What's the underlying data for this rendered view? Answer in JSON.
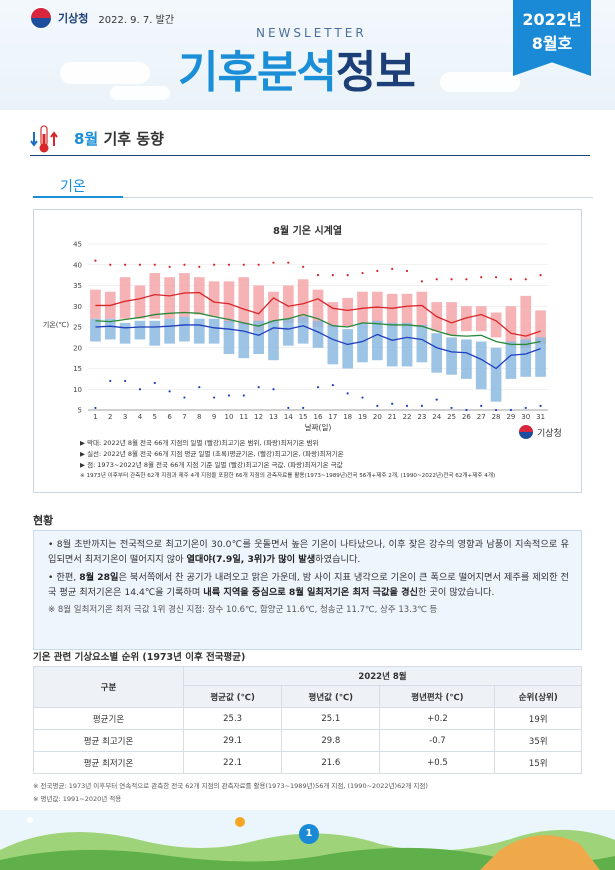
{
  "header": {
    "agency": "기상청",
    "pub_date": "2022. 9. 7. 발간",
    "newsletter": "NEWSLETTER",
    "title_part1": "기후분석",
    "title_part2": "정보",
    "issue_year": "2022년",
    "issue_month": "8월호"
  },
  "section": {
    "title_highlight": "8월",
    "title_rest": " 기후 동향",
    "tab": "기온"
  },
  "chart_data": {
    "type": "line",
    "title": "8월 기온 시계열",
    "xlabel": "날짜(일)",
    "ylabel": "기온(℃)",
    "ylim": [
      5,
      45
    ],
    "yticks": [
      5,
      10,
      15,
      20,
      25,
      30,
      35,
      40,
      45
    ],
    "x": [
      1,
      2,
      3,
      4,
      5,
      6,
      7,
      8,
      9,
      10,
      11,
      12,
      13,
      14,
      15,
      16,
      17,
      18,
      19,
      20,
      21,
      22,
      23,
      24,
      25,
      26,
      27,
      28,
      29,
      30,
      31
    ],
    "series": [
      {
        "name": "2022년 8월 최고기온",
        "color": "#d9262b",
        "values": [
          30.2,
          30.2,
          31.2,
          31.8,
          32.8,
          32.5,
          33.2,
          33.3,
          31.0,
          30.6,
          29.3,
          28.2,
          32.0,
          30.0,
          30.6,
          31.8,
          29.5,
          29.0,
          29.5,
          29.8,
          29.5,
          30.0,
          30.2,
          27.5,
          26.0,
          27.2,
          28.0,
          26.5,
          23.5,
          22.8,
          24.0
        ]
      },
      {
        "name": "2022년 8월 평균기온",
        "color": "#2a8a3b",
        "values": [
          26.5,
          26.3,
          26.8,
          27.3,
          28.0,
          28.3,
          28.5,
          28.3,
          27.5,
          26.8,
          26.0,
          25.2,
          26.5,
          27.0,
          28.0,
          27.0,
          25.3,
          25.0,
          26.0,
          25.8,
          25.5,
          25.5,
          25.2,
          24.0,
          23.0,
          22.8,
          23.0,
          21.5,
          20.8,
          20.8,
          21.5
        ]
      },
      {
        "name": "2022년 8월 최저기온",
        "color": "#1f3fbf",
        "values": [
          25.0,
          25.2,
          24.8,
          25.0,
          25.0,
          25.2,
          25.5,
          25.5,
          24.8,
          24.5,
          24.0,
          23.0,
          24.8,
          24.5,
          25.3,
          23.8,
          22.0,
          20.8,
          21.5,
          23.2,
          21.8,
          22.5,
          22.0,
          20.0,
          19.0,
          18.8,
          17.2,
          15.0,
          18.2,
          18.5,
          19.8
        ]
      }
    ],
    "max_range": {
      "name": "최고기온 범위",
      "values": [
        [
          27,
          34
        ],
        [
          27,
          33.5
        ],
        [
          27,
          37
        ],
        [
          27,
          35
        ],
        [
          27,
          38
        ],
        [
          27,
          37
        ],
        [
          27.5,
          38
        ],
        [
          28,
          37
        ],
        [
          27.5,
          36
        ],
        [
          26,
          36
        ],
        [
          25.5,
          37
        ],
        [
          24,
          35
        ],
        [
          26,
          33.5
        ],
        [
          26,
          35
        ],
        [
          26,
          36.5
        ],
        [
          25,
          34
        ],
        [
          25,
          31
        ],
        [
          25,
          32
        ],
        [
          26,
          33.5
        ],
        [
          26,
          33.5
        ],
        [
          25.5,
          33
        ],
        [
          25.5,
          33
        ],
        [
          25,
          33.5
        ],
        [
          24,
          31
        ],
        [
          23,
          31
        ],
        [
          24,
          30
        ],
        [
          24,
          30
        ],
        [
          22.5,
          28.5
        ],
        [
          21,
          30
        ],
        [
          20,
          32.5
        ],
        [
          21,
          29
        ]
      ]
    },
    "min_range": {
      "name": "최저기온 범위",
      "values": [
        [
          21.5,
          27
        ],
        [
          22,
          27
        ],
        [
          21,
          26
        ],
        [
          22,
          26.5
        ],
        [
          20.5,
          26.5
        ],
        [
          21,
          27
        ],
        [
          21.5,
          27.5
        ],
        [
          21,
          27
        ],
        [
          21,
          27
        ],
        [
          18.5,
          26.5
        ],
        [
          17.5,
          26
        ],
        [
          18.5,
          26.5
        ],
        [
          17,
          26.5
        ],
        [
          20.5,
          27
        ],
        [
          21,
          27.5
        ],
        [
          20,
          26.5
        ],
        [
          16,
          25.5
        ],
        [
          15,
          24.5
        ],
        [
          16.5,
          26
        ],
        [
          17,
          26.5
        ],
        [
          15.5,
          26
        ],
        [
          15.5,
          26
        ],
        [
          16.5,
          25.5
        ],
        [
          14,
          23.5
        ],
        [
          13.5,
          22.5
        ],
        [
          12.5,
          22
        ],
        [
          10,
          21.5
        ],
        [
          7,
          20
        ],
        [
          12.5,
          21.5
        ],
        [
          13,
          22
        ],
        [
          13,
          22.5
        ]
      ]
    },
    "record_high": [
      41,
      40,
      40,
      40,
      40,
      39.5,
      40,
      39.5,
      40,
      40,
      40,
      40,
      40.5,
      40.5,
      39.5,
      37.5,
      37.5,
      37.5,
      38,
      38.5,
      39,
      38.5,
      36,
      36.5,
      36.5,
      36.5,
      37,
      37,
      36.5,
      36.5,
      37.5
    ],
    "record_low": [
      5.5,
      12,
      12,
      10,
      11.5,
      9.5,
      8,
      10.5,
      8,
      8.5,
      8.5,
      10.5,
      10,
      5.5,
      5.5,
      10.5,
      11,
      9,
      8,
      6,
      6.5,
      6,
      6,
      7.5,
      5.5,
      5,
      6,
      5,
      5,
      5.5,
      6
    ]
  },
  "legend": {
    "line1": "▶ 막대: 2022년 8월 전국 66개 지점의 일별 (빨강)최고기온 범위, (파랑)최저기온 범위",
    "line2": "▶ 실선: 2022년 8월 전국 66개 지점 평균 일별 (초록)평균기온, (빨강)최고기온, (파랑)최저기온",
    "line3": "▶ 점: 1973~2022년 8월 전국 66개 지점 기준 일별 (빨강)최고기온 극값, (파랑)최저기온 극값",
    "note": "※ 1973년 이후부터 관측한 62개 지점과 제주 4개 지점을 포함한 66개 지점의 관측자료를 활용(1973~1989년)전국 56개+제주 2개, (1990~2022년)전국 62개+제주 4개)",
    "agency": "기상청"
  },
  "status": {
    "title": "현황",
    "p1_a": "8월 초반까지는 전국적으로 최고기온이 30.0℃를 웃돌면서 높은 기온이 나타났으나, 이후 잦은 강수의 영향과 남풍이 지속적으로 유입되면서 최저기온이 떨어지지 않아 ",
    "p1_b": "열대야(7.9일, 3위)가 많이 발생",
    "p1_c": "하였습니다.",
    "p2_a": "한편, ",
    "p2_b": "8월 28일",
    "p2_c": "은 북서쪽에서 찬 공기가 내려오고 맑은 가운데, 밤 사이 지표 냉각으로 기온이 큰 폭으로 떨어지면서 제주를 제외한 전국 평균 최저기온은 14.4℃을 기록하며 ",
    "p2_d": "내륙 지역을 중심으로 8월 일최저기온 최저 극값을 경신",
    "p2_e": "한 곳이 많았습니다.",
    "note": "※ 8월 일최저기온 최저 극값 1위 경신 지점: 장수 10.6℃, 함양군 11.6℃, 청송군 11.7℃, 상주 13.3℃ 등"
  },
  "table": {
    "title": "기온 관련 기상요소별 순위 (1973년 이후 전국평균)",
    "header_col": "구분",
    "group_header": "2022년 8월",
    "columns": [
      "평균값 (℃)",
      "평년값 (℃)",
      "평년편차 (℃)",
      "순위(상위)"
    ],
    "rows": [
      {
        "label": "평균기온",
        "cells": [
          "25.3",
          "25.1",
          "+0.2",
          "19위"
        ]
      },
      {
        "label": "평균 최고기온",
        "cells": [
          "29.1",
          "29.8",
          "-0.7",
          "35위"
        ]
      },
      {
        "label": "평균 최저기온",
        "cells": [
          "22.1",
          "21.6",
          "+0.5",
          "15위"
        ]
      }
    ],
    "note1": "※ 전국평균: 1973년 이후부터 연속적으로 관측한 전국 62개 지점의 관측자료를 활용(1973~1989년)56개 지점, (1990~2022년)62개 지점)",
    "note2": "※ 평년값: 1991~2020년 적용"
  },
  "footer": {
    "page": "1"
  }
}
